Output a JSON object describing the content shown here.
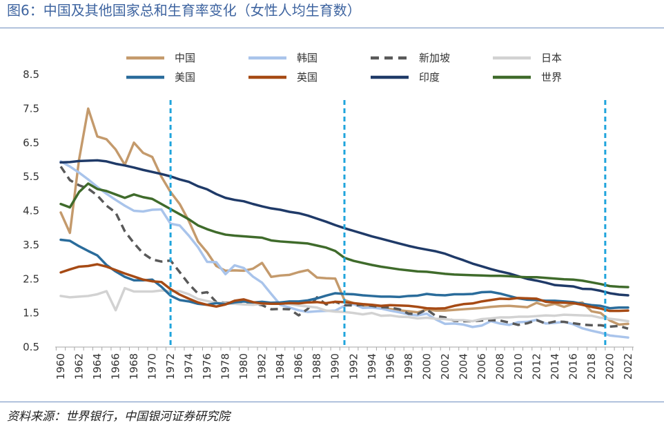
{
  "source": "资料来源：世界银行，中国银河证券研究院",
  "chart_data": {
    "type": "line",
    "title": "图6：中国及其他国家总和生育率变化（女性人均生育数）",
    "xlim": [
      1960,
      2022
    ],
    "ylim": [
      0.5,
      8.5
    ],
    "grid": false,
    "legend": "top",
    "x_ticks": [
      1960,
      1962,
      1964,
      1966,
      1968,
      1970,
      1972,
      1974,
      1976,
      1978,
      1980,
      1982,
      1984,
      1986,
      1988,
      1990,
      1992,
      1994,
      1996,
      1998,
      2000,
      2002,
      2004,
      2006,
      2008,
      2010,
      2012,
      2014,
      2016,
      2018,
      2020,
      2022
    ],
    "y_ticks": [
      0.5,
      1.5,
      2.5,
      3.5,
      4.5,
      5.5,
      6.5,
      7.5,
      8.5
    ],
    "vlines": [
      1972,
      1991,
      2019.5
    ],
    "vline_color": "#1FA4DC",
    "x": [
      1960,
      1961,
      1962,
      1963,
      1964,
      1965,
      1966,
      1967,
      1968,
      1969,
      1970,
      1971,
      1972,
      1973,
      1974,
      1975,
      1976,
      1977,
      1978,
      1979,
      1980,
      1981,
      1982,
      1983,
      1984,
      1985,
      1986,
      1987,
      1988,
      1989,
      1990,
      1991,
      1992,
      1993,
      1994,
      1995,
      1996,
      1997,
      1998,
      1999,
      2000,
      2001,
      2002,
      2003,
      2004,
      2005,
      2006,
      2007,
      2008,
      2009,
      2010,
      2011,
      2012,
      2013,
      2014,
      2015,
      2016,
      2017,
      2018,
      2019,
      2020,
      2021,
      2022
    ],
    "series": [
      {
        "name": "中国",
        "color": "#C49A6C",
        "line_style": "solid",
        "values": [
          4.45,
          3.85,
          6.0,
          7.5,
          6.68,
          6.6,
          6.3,
          5.85,
          6.5,
          6.2,
          6.08,
          5.5,
          5.05,
          4.7,
          4.2,
          3.6,
          3.28,
          2.88,
          2.74,
          2.75,
          2.74,
          2.8,
          2.97,
          2.56,
          2.6,
          2.62,
          2.7,
          2.76,
          2.54,
          2.52,
          2.51,
          1.88,
          1.79,
          1.72,
          1.68,
          1.65,
          1.62,
          1.58,
          1.55,
          1.52,
          1.6,
          1.57,
          1.57,
          1.59,
          1.61,
          1.63,
          1.65,
          1.68,
          1.7,
          1.71,
          1.69,
          1.67,
          1.8,
          1.71,
          1.77,
          1.68,
          1.77,
          1.81,
          1.55,
          1.5,
          1.28,
          1.16,
          1.18
        ]
      },
      {
        "name": "韩国",
        "color": "#A9C4EB",
        "line_style": "solid",
        "values": [
          5.95,
          5.8,
          5.62,
          5.42,
          5.2,
          5.0,
          4.82,
          4.65,
          4.5,
          4.48,
          4.53,
          4.54,
          4.12,
          4.07,
          3.77,
          3.43,
          3.0,
          2.99,
          2.64,
          2.9,
          2.82,
          2.57,
          2.39,
          2.06,
          1.74,
          1.66,
          1.58,
          1.53,
          1.55,
          1.56,
          1.57,
          1.71,
          1.76,
          1.65,
          1.66,
          1.63,
          1.57,
          1.52,
          1.46,
          1.43,
          1.48,
          1.31,
          1.18,
          1.19,
          1.16,
          1.09,
          1.13,
          1.26,
          1.19,
          1.15,
          1.23,
          1.24,
          1.3,
          1.19,
          1.21,
          1.24,
          1.17,
          1.05,
          0.98,
          0.92,
          0.84,
          0.81,
          0.78
        ]
      },
      {
        "name": "新加坡",
        "color": "#595959",
        "line_style": "dashed",
        "values": [
          5.8,
          5.4,
          5.25,
          5.15,
          4.95,
          4.65,
          4.45,
          3.9,
          3.55,
          3.25,
          3.07,
          3.01,
          3.04,
          2.7,
          2.35,
          2.07,
          2.11,
          1.82,
          1.8,
          1.79,
          1.82,
          1.78,
          1.73,
          1.61,
          1.62,
          1.61,
          1.43,
          1.62,
          1.96,
          1.75,
          1.83,
          1.73,
          1.72,
          1.74,
          1.71,
          1.67,
          1.66,
          1.61,
          1.48,
          1.47,
          1.6,
          1.41,
          1.37,
          1.27,
          1.26,
          1.26,
          1.28,
          1.29,
          1.28,
          1.22,
          1.15,
          1.2,
          1.29,
          1.19,
          1.25,
          1.24,
          1.2,
          1.16,
          1.14,
          1.14,
          1.1,
          1.12,
          1.04
        ]
      },
      {
        "name": "日本",
        "color": "#D2D2D2",
        "line_style": "solid",
        "values": [
          2.0,
          1.96,
          1.98,
          2.0,
          2.05,
          2.14,
          1.58,
          2.23,
          2.13,
          2.13,
          2.13,
          2.16,
          2.14,
          2.14,
          2.05,
          1.91,
          1.85,
          1.8,
          1.79,
          1.77,
          1.75,
          1.74,
          1.77,
          1.8,
          1.81,
          1.76,
          1.72,
          1.69,
          1.66,
          1.57,
          1.54,
          1.53,
          1.5,
          1.46,
          1.5,
          1.42,
          1.43,
          1.39,
          1.38,
          1.34,
          1.36,
          1.33,
          1.32,
          1.29,
          1.29,
          1.26,
          1.32,
          1.34,
          1.37,
          1.37,
          1.39,
          1.39,
          1.41,
          1.43,
          1.42,
          1.45,
          1.44,
          1.43,
          1.42,
          1.36,
          1.33,
          1.3,
          1.26
        ]
      },
      {
        "name": "美国",
        "color": "#2A6C9B",
        "line_style": "solid",
        "values": [
          3.65,
          3.62,
          3.46,
          3.32,
          3.19,
          2.91,
          2.72,
          2.56,
          2.46,
          2.46,
          2.48,
          2.27,
          2.01,
          1.88,
          1.84,
          1.77,
          1.74,
          1.79,
          1.76,
          1.81,
          1.84,
          1.81,
          1.83,
          1.8,
          1.81,
          1.84,
          1.84,
          1.87,
          1.93,
          2.01,
          2.08,
          2.06,
          2.05,
          2.02,
          2.0,
          1.98,
          1.98,
          1.97,
          2.0,
          2.01,
          2.06,
          2.03,
          2.02,
          2.05,
          2.05,
          2.06,
          2.11,
          2.12,
          2.07,
          2.0,
          1.93,
          1.89,
          1.88,
          1.86,
          1.86,
          1.84,
          1.82,
          1.77,
          1.73,
          1.71,
          1.64,
          1.66,
          1.66
        ]
      },
      {
        "name": "英国",
        "color": "#A64A14",
        "line_style": "solid",
        "values": [
          2.69,
          2.78,
          2.86,
          2.88,
          2.93,
          2.86,
          2.76,
          2.66,
          2.57,
          2.48,
          2.43,
          2.41,
          2.2,
          2.04,
          1.92,
          1.81,
          1.74,
          1.69,
          1.75,
          1.86,
          1.9,
          1.82,
          1.78,
          1.77,
          1.77,
          1.79,
          1.78,
          1.81,
          1.82,
          1.79,
          1.83,
          1.82,
          1.79,
          1.76,
          1.74,
          1.71,
          1.73,
          1.72,
          1.71,
          1.68,
          1.64,
          1.63,
          1.64,
          1.71,
          1.76,
          1.78,
          1.84,
          1.88,
          1.92,
          1.91,
          1.94,
          1.93,
          1.92,
          1.83,
          1.81,
          1.8,
          1.79,
          1.74,
          1.68,
          1.63,
          1.56,
          1.56,
          1.57
        ]
      },
      {
        "name": "印度",
        "color": "#1F3A68",
        "line_style": "solid",
        "values": [
          5.92,
          5.93,
          5.96,
          5.97,
          5.98,
          5.95,
          5.88,
          5.83,
          5.77,
          5.7,
          5.64,
          5.58,
          5.51,
          5.42,
          5.35,
          5.22,
          5.13,
          4.99,
          4.88,
          4.82,
          4.78,
          4.7,
          4.63,
          4.57,
          4.53,
          4.47,
          4.43,
          4.36,
          4.27,
          4.18,
          4.08,
          3.99,
          3.91,
          3.83,
          3.75,
          3.68,
          3.61,
          3.54,
          3.47,
          3.41,
          3.36,
          3.31,
          3.24,
          3.14,
          3.05,
          2.95,
          2.87,
          2.79,
          2.72,
          2.66,
          2.58,
          2.5,
          2.45,
          2.39,
          2.32,
          2.3,
          2.28,
          2.21,
          2.2,
          2.15,
          2.08,
          2.04,
          2.02
        ]
      },
      {
        "name": "世界",
        "color": "#3F6B2B",
        "line_style": "solid",
        "values": [
          4.7,
          4.6,
          5.05,
          5.3,
          5.14,
          5.08,
          4.98,
          4.88,
          4.98,
          4.9,
          4.85,
          4.7,
          4.55,
          4.4,
          4.25,
          4.07,
          3.96,
          3.87,
          3.8,
          3.77,
          3.75,
          3.73,
          3.71,
          3.63,
          3.6,
          3.58,
          3.56,
          3.54,
          3.48,
          3.42,
          3.32,
          3.12,
          3.03,
          2.97,
          2.91,
          2.86,
          2.82,
          2.78,
          2.75,
          2.72,
          2.71,
          2.68,
          2.65,
          2.63,
          2.62,
          2.61,
          2.6,
          2.59,
          2.59,
          2.58,
          2.56,
          2.55,
          2.55,
          2.53,
          2.51,
          2.49,
          2.48,
          2.45,
          2.4,
          2.35,
          2.29,
          2.27,
          2.26
        ]
      }
    ]
  }
}
